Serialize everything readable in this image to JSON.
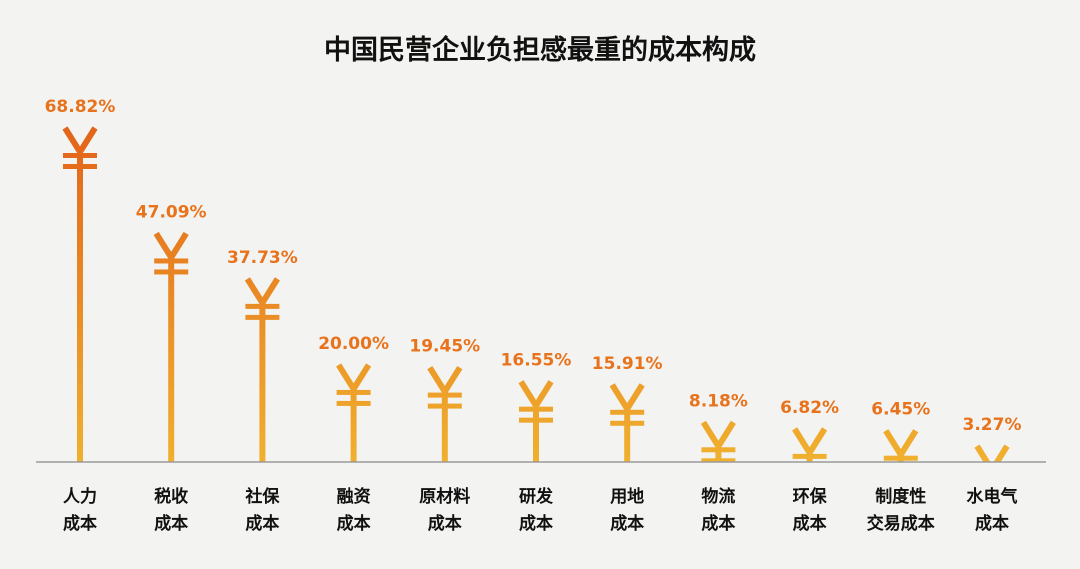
{
  "chart_data": {
    "type": "bar",
    "title": "中国民营企业负担感最重的成本构成",
    "xlabel": "",
    "ylabel": "",
    "ylim": [
      0,
      70
    ],
    "grid": false,
    "legend": "none",
    "unit": "%",
    "categories": [
      [
        "人力",
        "成本"
      ],
      [
        "税收",
        "成本"
      ],
      [
        "社保",
        "成本"
      ],
      [
        "融资",
        "成本"
      ],
      [
        "原材料",
        "成本"
      ],
      [
        "研发",
        "成本"
      ],
      [
        "用地",
        "成本"
      ],
      [
        "物流",
        "成本"
      ],
      [
        "环保",
        "成本"
      ],
      [
        "制度性",
        "交易成本"
      ],
      [
        "水电气",
        "成本"
      ]
    ],
    "values": [
      68.82,
      47.09,
      37.73,
      20.0,
      19.45,
      16.55,
      15.91,
      8.18,
      6.82,
      6.45,
      3.27
    ],
    "value_labels": [
      "68.82%",
      "47.09%",
      "37.73%",
      "20.00%",
      "19.45%",
      "16.55%",
      "15.91%",
      "8.18%",
      "6.82%",
      "6.45%",
      "3.27%"
    ]
  },
  "colors": {
    "value_label": "#e8731c",
    "bar_top": "#e2631a",
    "bar_bottom": "#f0b02e",
    "baseline": "#9a9a9a",
    "background": "#f3f3f1"
  },
  "mark_icon": "yen-sign-icon"
}
